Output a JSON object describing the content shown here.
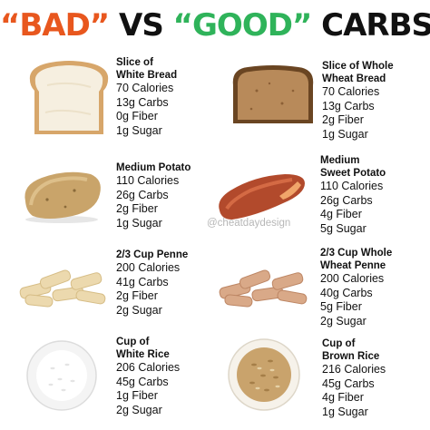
{
  "title": {
    "part1": "“BAD”",
    "part2": "VS",
    "part3": "“GOOD”",
    "part4": "CARBS"
  },
  "colors": {
    "bad": "#e8571e",
    "good": "#2fb35a",
    "text": "#111111"
  },
  "watermark": "@cheatdaydesign",
  "bad": [
    {
      "name1": "Slice of",
      "name2": "White Bread",
      "calories": "70 Calories",
      "carbs": "13g Carbs",
      "fiber": "0g Fiber",
      "sugar": "1g Sugar"
    },
    {
      "name1": "Medium Potato",
      "name2": "",
      "calories": "110 Calories",
      "carbs": "26g Carbs",
      "fiber": "2g Fiber",
      "sugar": "1g Sugar"
    },
    {
      "name1": "2/3 Cup Penne",
      "name2": "",
      "calories": "200 Calories",
      "carbs": "41g Carbs",
      "fiber": "2g Fiber",
      "sugar": "2g Sugar"
    },
    {
      "name1": "Cup of",
      "name2": "White Rice",
      "calories": "206 Calories",
      "carbs": "45g Carbs",
      "fiber": "1g Fiber",
      "sugar": "2g Sugar"
    }
  ],
  "good": [
    {
      "name1": "Slice of Whole",
      "name2": "Wheat Bread",
      "calories": "70 Calories",
      "carbs": "13g Carbs",
      "fiber": "2g Fiber",
      "sugar": "1g Sugar"
    },
    {
      "name1": "Medium",
      "name2": "Sweet Potato",
      "calories": "110 Calories",
      "carbs": "26g Carbs",
      "fiber": "4g Fiber",
      "sugar": "5g Sugar"
    },
    {
      "name1": "2/3 Cup Whole",
      "name2": "Wheat Penne",
      "calories": "200 Calories",
      "carbs": "40g Carbs",
      "fiber": "5g Fiber",
      "sugar": "2g Sugar"
    },
    {
      "name1": "Cup of",
      "name2": "Brown Rice",
      "calories": "216 Calories",
      "carbs": "45g Carbs",
      "fiber": "4g Fiber",
      "sugar": "1g Sugar"
    }
  ]
}
